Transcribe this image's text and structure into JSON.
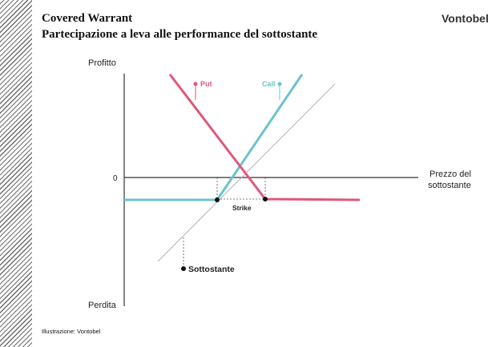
{
  "header": {
    "title": "Covered Warrant",
    "subtitle": "Partecipazione a leva alle performance del sottostante",
    "brand": "Vontobel"
  },
  "footer": {
    "credit": "Illustrazione: Vontobel"
  },
  "diagram": {
    "y_axis_top_label": "Profitto",
    "y_axis_bottom_label": "Perdita",
    "zero_label": "0",
    "x_axis_label_line1": "Prezzo del",
    "x_axis_label_line2": "sottostante",
    "put_label": "Put",
    "call_label": "Call",
    "strike_label": "Strike",
    "underlying_label": "Sottostante",
    "colors": {
      "put": "#e0577a",
      "call": "#6cc3cc",
      "underlying": "#b3b3b3",
      "axis": "#333333"
    }
  }
}
